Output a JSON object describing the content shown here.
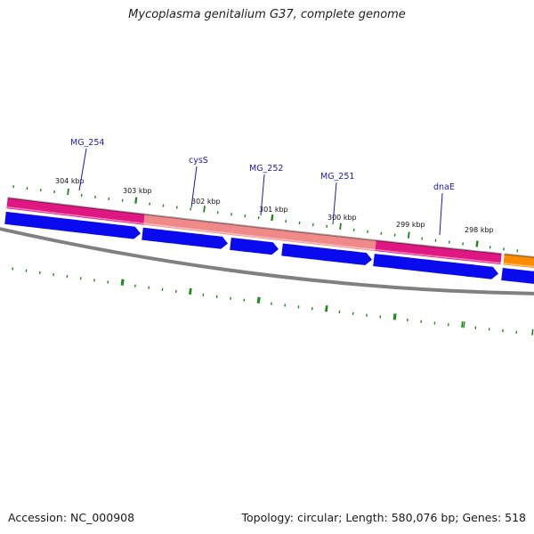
{
  "title": "Mycoplasma genitalium G37, complete genome",
  "footer": {
    "accession": "Accession: NC_000908",
    "stats": "Topology: circular; Length: 580,076 bp; Genes: 518"
  },
  "colors": {
    "forward_cds": "#0a0aee",
    "backbone": "#808080",
    "tick": "#1a8a1a",
    "gene_label": "#1a1ab4",
    "feature_magenta": "#e01782",
    "feature_salmon": "#f08a8a",
    "feature_orange": "#ff8c00"
  },
  "ticks": [
    {
      "kbp": 304,
      "label": "304 kbp"
    },
    {
      "kbp": 303,
      "label": "303 kbp"
    },
    {
      "kbp": 302,
      "label": "302 kbp"
    },
    {
      "kbp": 301,
      "label": "301 kbp"
    },
    {
      "kbp": 300,
      "label": "300 kbp"
    },
    {
      "kbp": 299,
      "label": "299 kbp"
    },
    {
      "kbp": 298,
      "label": "298 kbp"
    }
  ],
  "feature_segments": [
    {
      "name": "feature-magenta-1",
      "color": "#e01782"
    },
    {
      "name": "feature-salmon-1",
      "color": "#f08a8a"
    },
    {
      "name": "feature-salmon-2",
      "color": "#f08a8a"
    },
    {
      "name": "feature-salmon-3",
      "color": "#f08a8a"
    },
    {
      "name": "feature-magenta-2",
      "color": "#e01782"
    },
    {
      "name": "feature-orange-1",
      "color": "#ff8c00"
    }
  ],
  "gene_labels": [
    "MG_254",
    "cysS",
    "MG_252",
    "MG_251",
    "dnaE"
  ]
}
